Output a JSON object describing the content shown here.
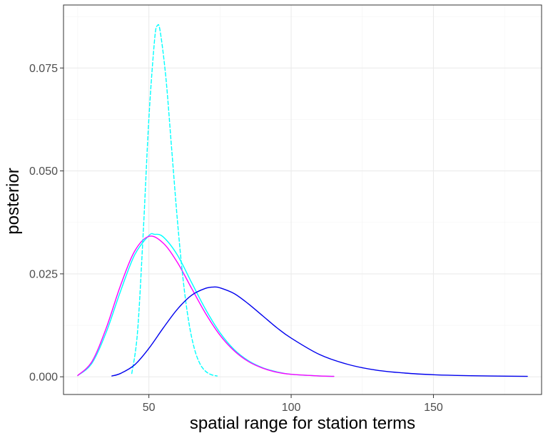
{
  "chart_data": {
    "type": "line",
    "title": "",
    "xlabel": "spatial range for station terms",
    "ylabel": "posterior",
    "xlim": [
      20,
      188
    ],
    "ylim": [
      -0.0043,
      0.0903
    ],
    "x_ticks": [
      50,
      100,
      150
    ],
    "x_tick_labels": [
      "50",
      "100",
      "150"
    ],
    "y_ticks": [
      0.0,
      0.025,
      0.05,
      0.075
    ],
    "y_tick_labels": [
      "0.000",
      "0.025",
      "0.050",
      "0.075"
    ],
    "grid": true,
    "legend": "none",
    "series": [
      {
        "color": "#00ffff",
        "dash": "solid",
        "x": [
          25,
          30,
          35,
          40,
          45,
          50,
          52,
          55,
          60,
          65,
          70,
          75,
          80,
          85,
          90,
          95,
          100,
          110,
          115
        ],
        "y": [
          0.0003,
          0.0033,
          0.0108,
          0.0207,
          0.0296,
          0.0343,
          0.0346,
          0.034,
          0.0296,
          0.0229,
          0.0163,
          0.0107,
          0.0066,
          0.0039,
          0.0022,
          0.0012,
          0.0006,
          0.0002,
          0.0001
        ]
      },
      {
        "color": "#ff00ff",
        "dash": "solid",
        "x": [
          25,
          30,
          35,
          40,
          45,
          50,
          55,
          60,
          65,
          70,
          75,
          80,
          85,
          90,
          95,
          100,
          110,
          115
        ],
        "y": [
          0.0003,
          0.0037,
          0.0118,
          0.0221,
          0.0305,
          0.0341,
          0.0325,
          0.0278,
          0.0215,
          0.0153,
          0.0101,
          0.0063,
          0.0037,
          0.0021,
          0.0011,
          0.0006,
          0.0002,
          0.0001
        ]
      },
      {
        "color": "#00ffff",
        "dash": "dashed",
        "x": [
          44,
          46,
          48,
          50,
          52,
          53,
          54,
          56,
          58,
          60,
          62,
          64,
          66,
          68,
          70,
          72,
          74
        ],
        "y": [
          0.0008,
          0.0108,
          0.0348,
          0.0627,
          0.0818,
          0.0853,
          0.0838,
          0.0725,
          0.0554,
          0.0382,
          0.0238,
          0.0134,
          0.0068,
          0.0031,
          0.0013,
          0.0005,
          0.0002
        ]
      },
      {
        "color": "#0000ee",
        "dash": "solid",
        "x": [
          37,
          40,
          45,
          50,
          55,
          60,
          65,
          70,
          73,
          75,
          80,
          85,
          90,
          95,
          100,
          110,
          120,
          130,
          140,
          150,
          160,
          170,
          183
        ],
        "y": [
          0.0002,
          0.0008,
          0.0029,
          0.0069,
          0.0118,
          0.0164,
          0.0198,
          0.0215,
          0.0218,
          0.0216,
          0.0202,
          0.0177,
          0.0148,
          0.0119,
          0.0094,
          0.0054,
          0.003,
          0.0016,
          0.0009,
          0.0005,
          0.0003,
          0.0002,
          0.0001
        ]
      }
    ]
  }
}
